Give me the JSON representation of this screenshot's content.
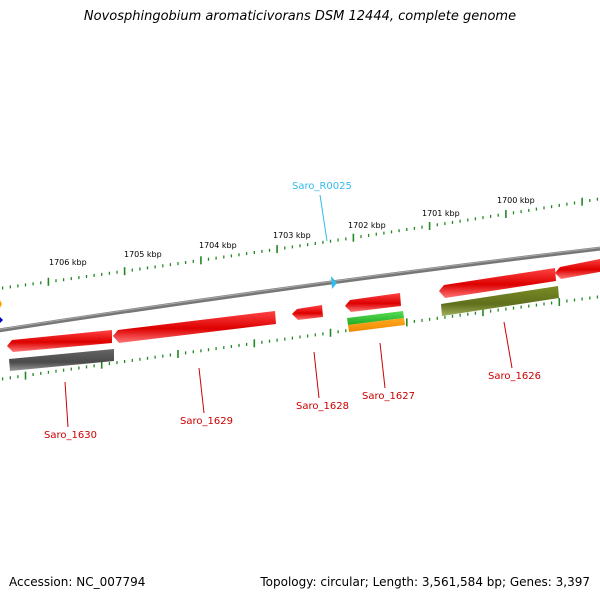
{
  "title": "Novosphingobium aromaticivorans DSM 12444, complete genome",
  "footer": {
    "accession": "Accession: NC_007794",
    "summary": "Topology: circular; Length: 3,561,584 bp; Genes: 3,397"
  },
  "scale_labels": [
    "1706 kbp",
    "1705 kbp",
    "1704 kbp",
    "1703 kbp",
    "1702 kbp",
    "1701 kbp",
    "1700 kbp"
  ],
  "genes": [
    {
      "id": "Saro_1630",
      "strand": "-",
      "color": "#cc0000"
    },
    {
      "id": "Saro_1629",
      "strand": "-",
      "color": "#cc0000"
    },
    {
      "id": "Saro_1628",
      "strand": "-",
      "color": "#cc0000"
    },
    {
      "id": "Saro_1627",
      "strand": "-",
      "color": "#cc0000"
    },
    {
      "id": "Saro_1626",
      "strand": "-",
      "color": "#cc0000"
    },
    {
      "id": "Saro_R0025",
      "strand": "+",
      "color": "#33bbee"
    }
  ],
  "colors": {
    "gene_red": "#ee1111",
    "rna_cyan": "#33bbee",
    "backbone_gray": "#808080",
    "tick_green": "#228822",
    "track_darkgray": "#555555",
    "track_olive": "#6b7d22",
    "track_green": "#33cc33",
    "track_orange": "#ff9900"
  }
}
